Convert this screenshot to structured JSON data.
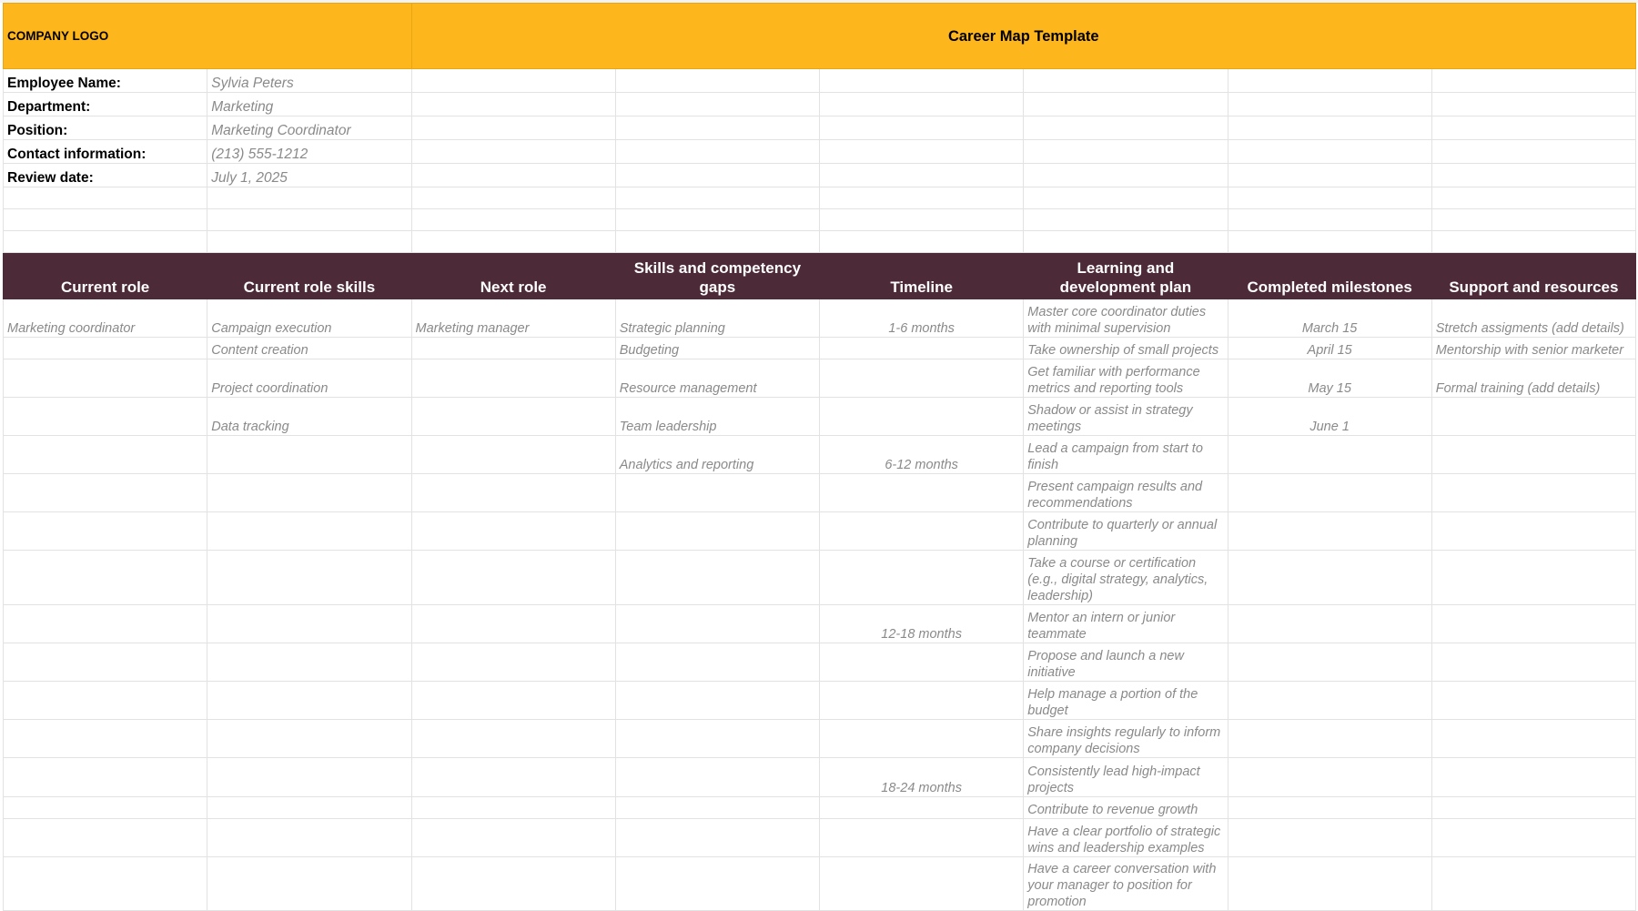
{
  "header": {
    "logo": "COMPANY LOGO",
    "title": "Career Map Template"
  },
  "colors": {
    "banner": "#fdb71c",
    "table_header": "#4d2a38",
    "value_text": "#8a8a8a"
  },
  "info": [
    {
      "label": "Employee Name:",
      "value": "Sylvia Peters"
    },
    {
      "label": "Department:",
      "value": "Marketing"
    },
    {
      "label": "Position:",
      "value": "Marketing Coordinator"
    },
    {
      "label": "Contact information:",
      "value": "(213) 555-1212"
    },
    {
      "label": "Review date:",
      "value": "July 1, 2025"
    }
  ],
  "columns": [
    "Current role",
    "Current role skills",
    "Next role",
    "Skills and competency gaps",
    "Timeline",
    "Learning and development plan",
    "Completed milestones",
    "Support and resources"
  ],
  "rows": [
    [
      "Marketing coordinator",
      "Campaign execution",
      "Marketing manager",
      "Strategic planning",
      "1-6 months",
      "Master core coordinator duties with minimal supervision",
      "March 15",
      "Stretch assigments (add details)"
    ],
    [
      "",
      "Content creation",
      "",
      "Budgeting",
      "",
      "Take ownership of small projects",
      "April 15",
      "Mentorship with senior marketer"
    ],
    [
      "",
      "Project coordination",
      "",
      "Resource management",
      "",
      "Get familiar with performance metrics and reporting tools",
      "May 15",
      "Formal training (add details)"
    ],
    [
      "",
      "Data tracking",
      "",
      "Team leadership",
      "",
      "Shadow or assist in strategy meetings",
      "June 1",
      ""
    ],
    [
      "",
      "",
      "",
      "Analytics and reporting",
      "6-12 months",
      "Lead a campaign from start to finish",
      "",
      ""
    ],
    [
      "",
      "",
      "",
      "",
      "",
      "Present campaign results and recommendations",
      "",
      ""
    ],
    [
      "",
      "",
      "",
      "",
      "",
      "Contribute to quarterly or annual planning",
      "",
      ""
    ],
    [
      "",
      "",
      "",
      "",
      "",
      "Take a course or certification (e.g., digital strategy, analytics, leadership)",
      "",
      ""
    ],
    [
      "",
      "",
      "",
      "",
      "12-18 months",
      "Mentor an intern or junior teammate",
      "",
      ""
    ],
    [
      "",
      "",
      "",
      "",
      "",
      "Propose and launch a new initiative",
      "",
      ""
    ],
    [
      "",
      "",
      "",
      "",
      "",
      "Help manage a portion of the budget",
      "",
      ""
    ],
    [
      "",
      "",
      "",
      "",
      "",
      "Share insights regularly to inform company decisions",
      "",
      ""
    ],
    [
      "",
      "",
      "",
      "",
      "18-24 months",
      "Consistently lead high-impact projects",
      "",
      ""
    ],
    [
      "",
      "",
      "",
      "",
      "",
      "Contribute to revenue growth",
      "",
      ""
    ],
    [
      "",
      "",
      "",
      "",
      "",
      "Have a clear portfolio of strategic wins and leadership examples",
      "",
      ""
    ],
    [
      "",
      "",
      "",
      "",
      "",
      "Have a career conversation with your manager to position for promotion",
      "",
      ""
    ]
  ]
}
